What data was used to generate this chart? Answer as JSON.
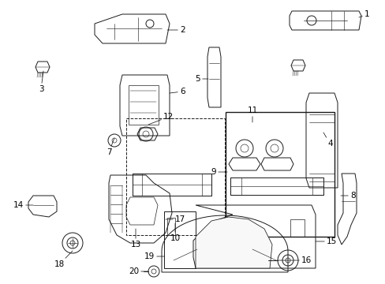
{
  "bg_color": "#ffffff",
  "fig_width": 4.89,
  "fig_height": 3.6,
  "dpi": 100,
  "lc": "#1a1a1a",
  "lw": 0.7,
  "label_fontsize": 7.5,
  "label_color": "#000000",
  "labels": {
    "1": [
      435,
      18,
      455,
      18
    ],
    "2": [
      225,
      42,
      238,
      42
    ],
    "3": [
      60,
      88,
      50,
      110
    ],
    "4": [
      408,
      168,
      408,
      185
    ],
    "5": [
      268,
      98,
      258,
      98
    ],
    "6": [
      228,
      108,
      240,
      108
    ],
    "7": [
      143,
      148,
      133,
      165
    ],
    "8": [
      430,
      248,
      445,
      248
    ],
    "9": [
      286,
      218,
      270,
      218
    ],
    "10": [
      240,
      285,
      240,
      300
    ],
    "11": [
      320,
      168,
      320,
      155
    ],
    "12": [
      215,
      158,
      215,
      145
    ],
    "13": [
      178,
      285,
      178,
      300
    ],
    "14": [
      65,
      258,
      52,
      258
    ],
    "15": [
      407,
      308,
      422,
      308
    ],
    "16": [
      388,
      330,
      402,
      330
    ],
    "17": [
      218,
      288,
      230,
      288
    ],
    "18": [
      88,
      318,
      78,
      330
    ],
    "19": [
      200,
      325,
      212,
      325
    ],
    "20": [
      195,
      342,
      207,
      342
    ]
  }
}
